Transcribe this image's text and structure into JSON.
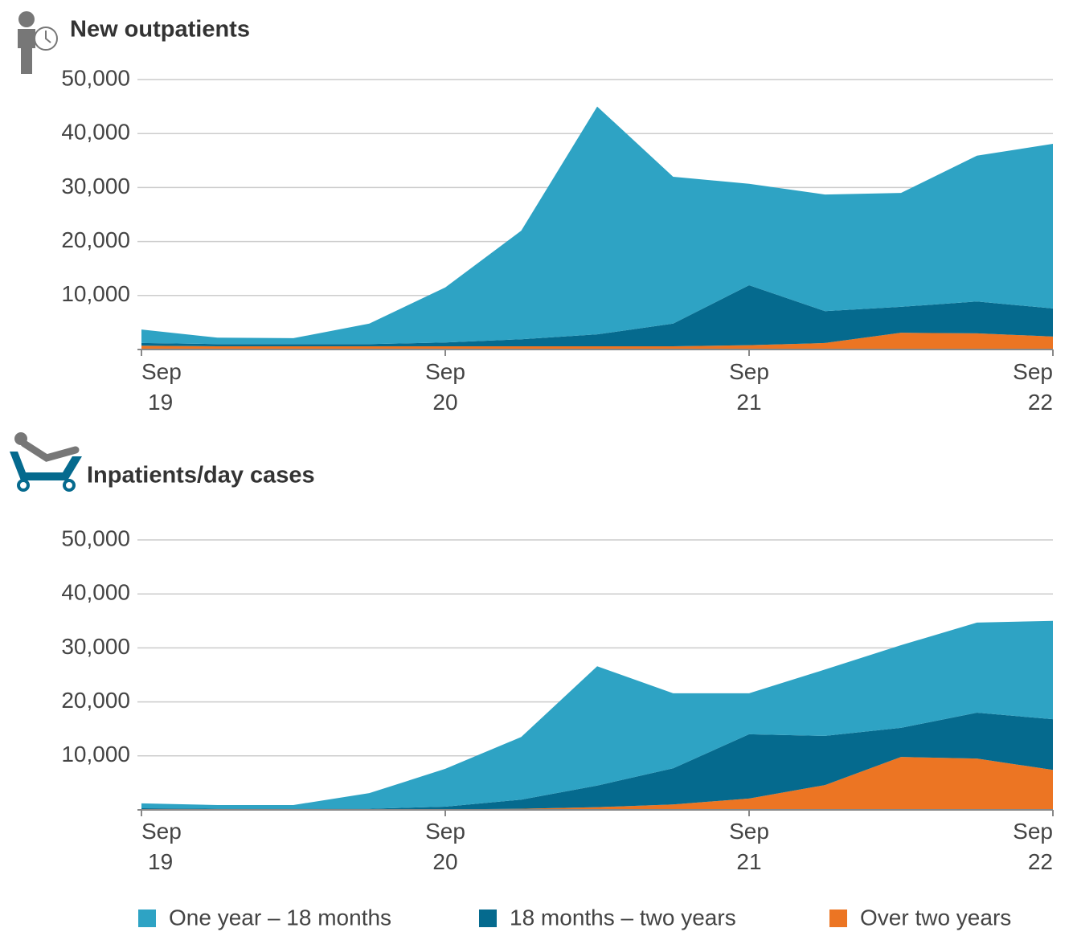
{
  "chart_data": [
    {
      "type": "area",
      "title": "New outpatients",
      "categories": [
        "Sep 19",
        null,
        null,
        null,
        "Sep 20",
        null,
        null,
        null,
        "Sep 21",
        null,
        null,
        null,
        "Sep 22"
      ],
      "series": [
        {
          "name": "One year – 18 months",
          "color": "#2ea3c4",
          "values": [
            2500,
            1200,
            1100,
            3800,
            10200,
            20100,
            42200,
            27200,
            18800,
            21600,
            21100,
            27000,
            30500
          ]
        },
        {
          "name": "18 months – two years",
          "color": "#056a8e",
          "values": [
            500,
            400,
            400,
            400,
            700,
            1300,
            2200,
            4200,
            11100,
            5900,
            4800,
            5900,
            5200
          ]
        },
        {
          "name": "Over two years",
          "color": "#ec7523",
          "values": [
            700,
            600,
            600,
            600,
            600,
            600,
            600,
            600,
            800,
            1200,
            3100,
            3000,
            2400
          ]
        }
      ],
      "stacked": true,
      "ylim": [
        0,
        50000
      ],
      "yticks": [
        {
          "value": 10000,
          "label": "10,000"
        },
        {
          "value": 20000,
          "label": "20,000"
        },
        {
          "value": 30000,
          "label": "30,000"
        },
        {
          "value": 40000,
          "label": "40,000"
        },
        {
          "value": 50000,
          "label": "50,000"
        }
      ],
      "grid": true
    },
    {
      "type": "area",
      "title": "Inpatients/day cases",
      "categories": [
        "Sep 19",
        null,
        null,
        null,
        "Sep 20",
        null,
        null,
        null,
        "Sep 21",
        null,
        null,
        null,
        "Sep 22"
      ],
      "series": [
        {
          "color": "#2ea3c4",
          "values": [
            900,
            700,
            700,
            2900,
            7000,
            11600,
            22100,
            13900,
            7600,
            12300,
            15300,
            16700,
            18200
          ]
        },
        {
          "color": "#056a8e",
          "values": [
            200,
            100,
            100,
            100,
            500,
            1700,
            4000,
            6700,
            11900,
            9100,
            5400,
            8500,
            9400
          ]
        },
        {
          "color": "#ec7523",
          "values": [
            100,
            100,
            100,
            100,
            100,
            200,
            500,
            1000,
            2100,
            4600,
            9800,
            9500,
            7400
          ]
        }
      ],
      "stacked": true,
      "ylim": [
        0,
        50000
      ],
      "yticks": [
        {
          "value": 10000,
          "label": "10,000"
        },
        {
          "value": 20000,
          "label": "20,000"
        },
        {
          "value": 30000,
          "label": "30,000"
        },
        {
          "value": 40000,
          "label": "40,000"
        },
        {
          "value": 50000,
          "label": "50,000"
        }
      ],
      "grid": true
    }
  ]
}
